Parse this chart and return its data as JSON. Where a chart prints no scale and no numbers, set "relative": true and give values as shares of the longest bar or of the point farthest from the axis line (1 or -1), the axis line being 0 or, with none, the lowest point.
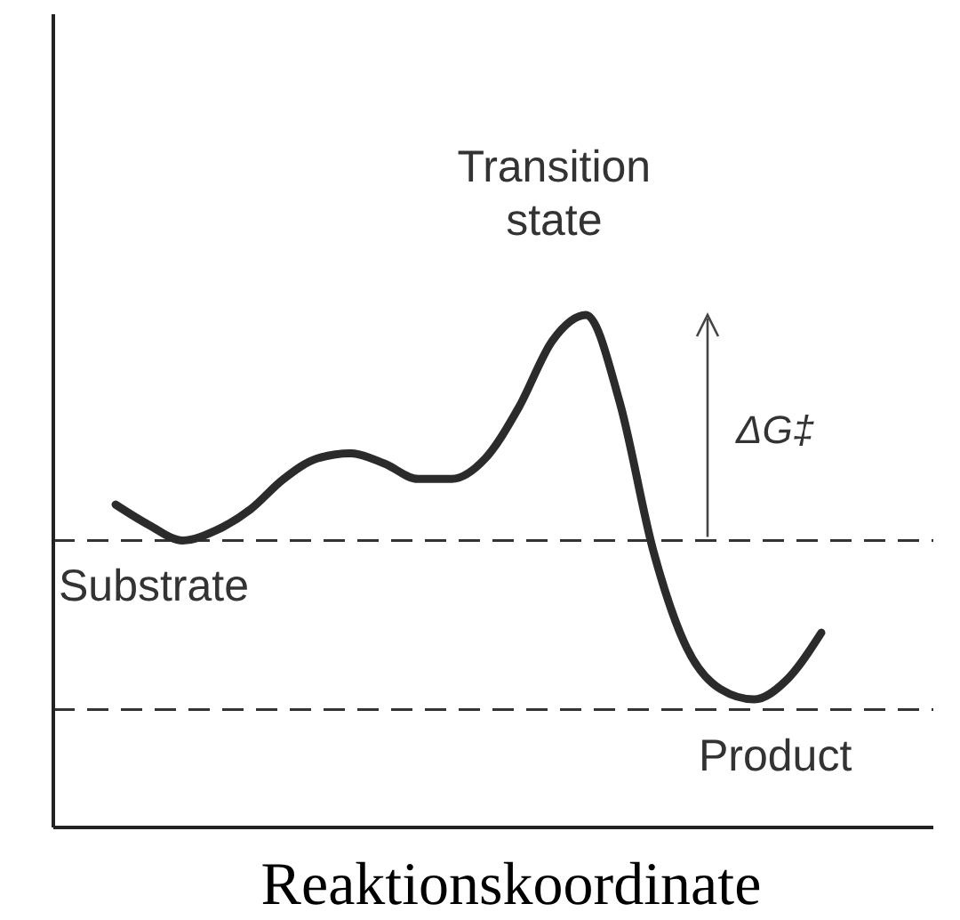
{
  "chart_data": {
    "type": "line",
    "relative": true,
    "xlabel": "Reaktionskoordinate",
    "categories": [
      null,
      null,
      null,
      null,
      null,
      null,
      null,
      null,
      null,
      null,
      null,
      null,
      null,
      null,
      null,
      null,
      null,
      null,
      null,
      null,
      null,
      null
    ],
    "series": [
      {
        "color": "#2b2b2b",
        "values": [
          0.63,
          0.59,
          0.56,
          0.58,
          0.62,
          0.68,
          0.72,
          0.73,
          0.71,
          0.68,
          0.68,
          0.72,
          0.82,
          0.95,
          1.0,
          0.83,
          0.54,
          0.35,
          0.27,
          0.25,
          0.29,
          0.38
        ]
      }
    ],
    "ref_lines": [
      {
        "axis": "y",
        "value": 0.56,
        "label": "Substrate",
        "line_style": "dashed",
        "color": "#333333"
      },
      {
        "axis": "y",
        "value": 0.23,
        "label": "Product",
        "line_style": "dashed",
        "color": "#333333"
      }
    ],
    "annotations": [
      "Transition state",
      "ΔG‡"
    ],
    "line_style": "solid",
    "marker": "none"
  }
}
